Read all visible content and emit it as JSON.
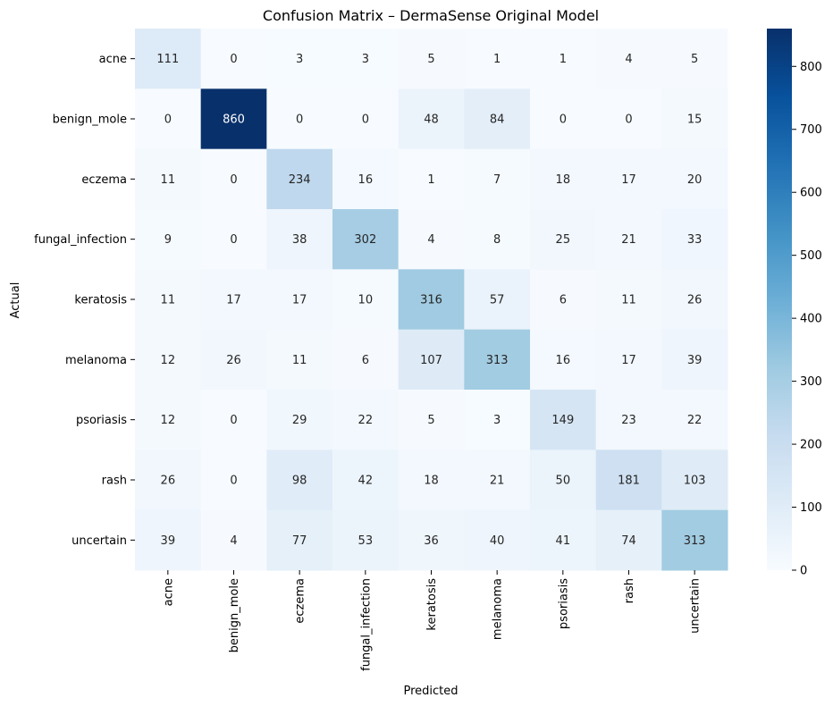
{
  "chart_data": {
    "type": "heatmap",
    "title": "Confusion Matrix – DermaSense Original Model",
    "xlabel": "Predicted",
    "ylabel": "Actual",
    "x_categories": [
      "acne",
      "benign_mole",
      "eczema",
      "fungal_infection",
      "keratosis",
      "melanoma",
      "psoriasis",
      "rash",
      "uncertain"
    ],
    "y_categories": [
      "acne",
      "benign_mole",
      "eczema",
      "fungal_infection",
      "keratosis",
      "melanoma",
      "psoriasis",
      "rash",
      "uncertain"
    ],
    "values": [
      [
        111,
        0,
        3,
        3,
        5,
        1,
        1,
        4,
        5
      ],
      [
        0,
        860,
        0,
        0,
        48,
        84,
        0,
        0,
        15
      ],
      [
        11,
        0,
        234,
        16,
        1,
        7,
        18,
        17,
        20
      ],
      [
        9,
        0,
        38,
        302,
        4,
        8,
        25,
        21,
        33
      ],
      [
        11,
        17,
        17,
        10,
        316,
        57,
        6,
        11,
        26
      ],
      [
        12,
        26,
        11,
        6,
        107,
        313,
        16,
        17,
        39
      ],
      [
        12,
        0,
        29,
        22,
        5,
        3,
        149,
        23,
        22
      ],
      [
        26,
        0,
        98,
        42,
        18,
        21,
        50,
        181,
        103
      ],
      [
        39,
        4,
        77,
        53,
        36,
        40,
        41,
        74,
        313
      ]
    ],
    "colormap": "Blues",
    "colorbar": {
      "min": 0,
      "max": 860,
      "ticks": [
        0,
        100,
        200,
        300,
        400,
        500,
        600,
        700,
        800
      ]
    },
    "grid": false
  }
}
